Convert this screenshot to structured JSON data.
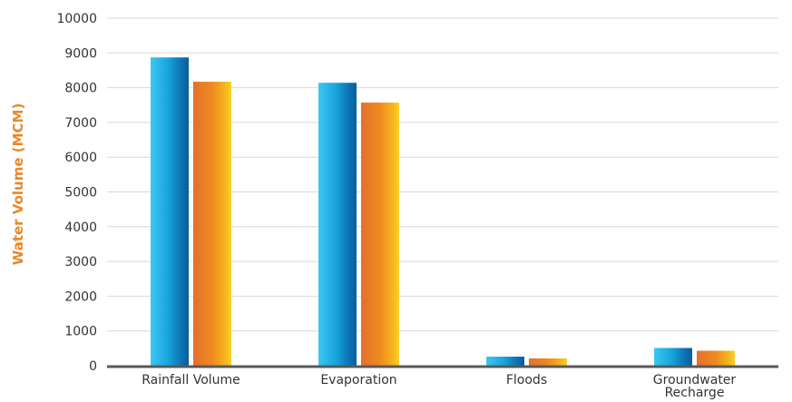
{
  "chart_data": {
    "type": "bar",
    "title": "",
    "xlabel": "",
    "ylabel": "Water Volume (MCM)",
    "ylim": [
      0,
      10000
    ],
    "yticks": [
      0,
      1000,
      2000,
      3000,
      4000,
      5000,
      6000,
      7000,
      8000,
      9000,
      10000
    ],
    "grid": true,
    "legend": "none",
    "categories": [
      [
        "Rainfall Volume"
      ],
      [
        "Evaporation"
      ],
      [
        "Floods"
      ],
      [
        "Groundwater",
        "Recharge"
      ]
    ],
    "series": [
      {
        "values": [
          8870,
          8140,
          260,
          510
        ],
        "color": "#1ea8e0"
      },
      {
        "values": [
          8170,
          7570,
          210,
          430
        ],
        "color": "#f08a1c"
      }
    ],
    "colors": {
      "ylabel": "#e8892a",
      "axis": "#595959",
      "grid": "#d9d9d9"
    }
  }
}
